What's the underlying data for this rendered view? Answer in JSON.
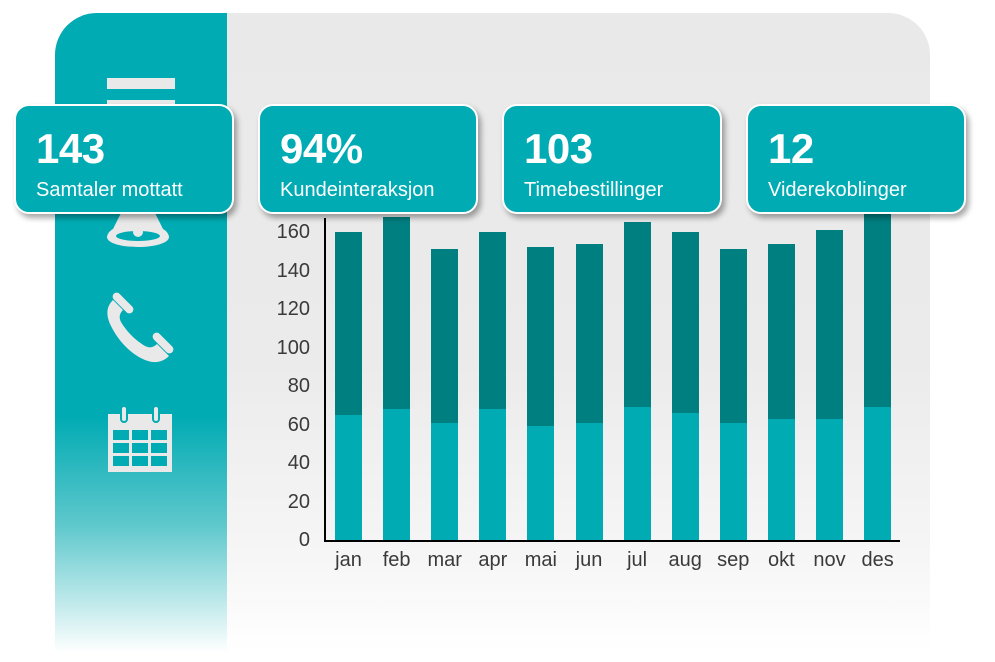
{
  "colors": {
    "brand": "#00abb3",
    "bar_lower": "#00abb3",
    "bar_upper": "#007f80",
    "panel_bg": "#e9e9e9",
    "icon_fill": "#e9e9e9"
  },
  "sidebar": {
    "icons": [
      {
        "name": "menu-icon"
      },
      {
        "name": "bell-icon"
      },
      {
        "name": "phone-icon"
      },
      {
        "name": "calendar-icon"
      }
    ]
  },
  "kpis": [
    {
      "value": "143",
      "label": "Samtaler mottatt"
    },
    {
      "value": "94%",
      "label": "Kundeinteraksjon"
    },
    {
      "value": "103",
      "label": "Timebestillinger"
    },
    {
      "value": "12",
      "label": "Viderekoblinger"
    }
  ],
  "chart_data": {
    "type": "bar",
    "stacked": true,
    "title": "",
    "xlabel": "",
    "ylabel": "",
    "categories": [
      "jan",
      "feb",
      "mar",
      "apr",
      "mai",
      "jun",
      "jul",
      "aug",
      "sep",
      "okt",
      "nov",
      "des"
    ],
    "series": [
      {
        "name": "lower",
        "color": "#00abb3",
        "values": [
          65,
          68,
          61,
          68,
          59,
          61,
          69,
          66,
          61,
          63,
          63,
          69
        ]
      },
      {
        "name": "upper",
        "color": "#007f80",
        "values": [
          95,
          100,
          90,
          92,
          93,
          93,
          96,
          94,
          90,
          91,
          98,
          101
        ]
      }
    ],
    "totals": [
      160,
      168,
      151,
      160,
      152,
      154,
      165,
      160,
      151,
      154,
      161,
      170
    ],
    "yticks": [
      "0",
      "20",
      "40",
      "60",
      "80",
      "100",
      "120",
      "140",
      "160"
    ],
    "ylim": [
      0,
      180
    ],
    "grid": false,
    "legend": "none"
  }
}
